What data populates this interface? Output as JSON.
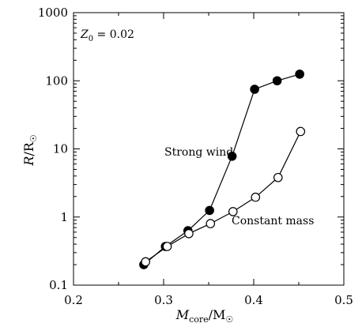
{
  "chart_data": {
    "type": "line",
    "annotation_text": "Z0 = 0.02",
    "xlabel": "Mcore/M☉",
    "ylabel": "R/R☉",
    "xlim": [
      0.2,
      0.5
    ],
    "ylim": [
      0.1,
      1000
    ],
    "yscale": "log",
    "grid": false,
    "x_ticks": [
      0.2,
      0.3,
      0.4,
      0.5
    ],
    "x_tick_labels": [
      "0.2",
      "0.3",
      "0.4",
      "0.5"
    ],
    "y_ticks": [
      0.1,
      1,
      10,
      100,
      1000
    ],
    "y_tick_labels": [
      "0.1",
      "1",
      "10",
      "100",
      "1000"
    ],
    "series": [
      {
        "name": "Strong wind",
        "marker": "filled-circle",
        "color": "#000000",
        "x": [
          0.278,
          0.302,
          0.327,
          0.351,
          0.376,
          0.401,
          0.426,
          0.451
        ],
        "y": [
          0.2,
          0.37,
          0.63,
          1.25,
          7.8,
          75,
          100,
          125
        ]
      },
      {
        "name": "Constant mass",
        "marker": "open-circle",
        "color": "#000000",
        "x": [
          0.28,
          0.304,
          0.328,
          0.352,
          0.377,
          0.402,
          0.427,
          0.452
        ],
        "y": [
          0.22,
          0.37,
          0.57,
          0.8,
          1.2,
          1.95,
          3.8,
          18
        ]
      }
    ]
  }
}
